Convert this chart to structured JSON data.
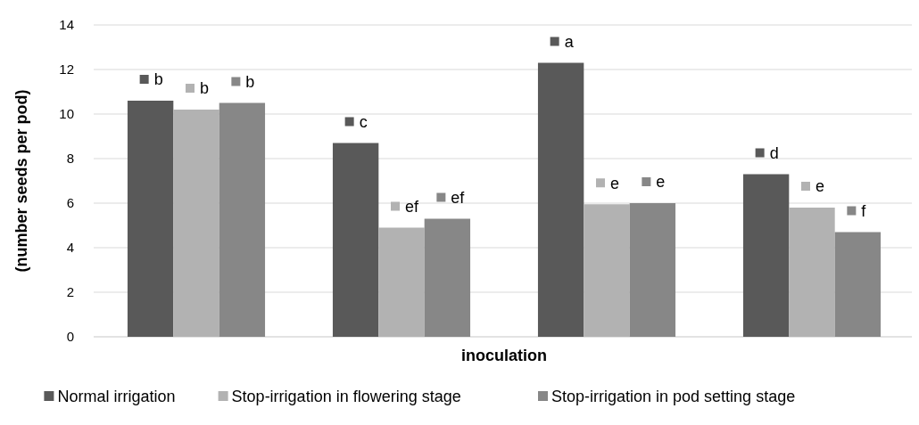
{
  "chart_data": {
    "type": "bar",
    "xlabel": "inoculation",
    "ylabel": "(number seeds per pod)",
    "categories": [
      null,
      null,
      null,
      null
    ],
    "series": [
      {
        "name": "Normal irrigation",
        "color": "#595959",
        "values": [
          10.6,
          8.7,
          12.3,
          7.3
        ],
        "value_labels": [
          "b",
          "c",
          "a",
          "d"
        ]
      },
      {
        "name": "Stop-irrigation in flowering stage",
        "color": "#b2b2b2",
        "values": [
          10.2,
          4.9,
          5.95,
          5.8
        ],
        "value_labels": [
          "b",
          "ef",
          "e",
          "e"
        ]
      },
      {
        "name": "Stop-irrigation in pod setting stage",
        "color": "#878787",
        "values": [
          10.5,
          5.3,
          6.0,
          4.7
        ],
        "value_labels": [
          "b",
          "ef",
          "e",
          "f"
        ]
      }
    ],
    "ylim": [
      0,
      14
    ],
    "yticks": [
      0,
      2,
      4,
      6,
      8,
      10,
      12,
      14
    ],
    "grid": "y",
    "legend": "bottom"
  }
}
